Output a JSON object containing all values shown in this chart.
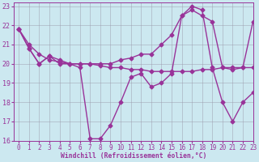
{
  "background_color": "#cce8f0",
  "grid_color": "#9999aa",
  "line_color": "#993399",
  "lines": [
    {
      "x": [
        0,
        1,
        2,
        3,
        4,
        5,
        6,
        7,
        8,
        9,
        10,
        11,
        12,
        13,
        14,
        15,
        16,
        17,
        18,
        19,
        20,
        21,
        22,
        23
      ],
      "y": [
        21.8,
        20.8,
        20.0,
        20.4,
        20.0,
        20.0,
        19.8,
        16.1,
        16.1,
        16.8,
        18.0,
        19.3,
        19.5,
        18.8,
        19.0,
        19.5,
        22.5,
        23.0,
        22.8,
        19.8,
        18.0,
        17.0,
        18.0,
        18.5
      ]
    },
    {
      "x": [
        0,
        1,
        2,
        3,
        4,
        5,
        6,
        7,
        8,
        9,
        10,
        11,
        12,
        13,
        14,
        15,
        16,
        17,
        18,
        19,
        20,
        21,
        22,
        23
      ],
      "y": [
        21.8,
        20.8,
        20.0,
        20.4,
        20.2,
        20.0,
        20.0,
        20.0,
        20.0,
        20.0,
        20.2,
        20.3,
        20.5,
        20.5,
        21.0,
        21.5,
        22.5,
        22.8,
        22.5,
        22.2,
        19.8,
        19.7,
        19.8,
        22.2
      ]
    },
    {
      "x": [
        0,
        1,
        2,
        3,
        4,
        5,
        6,
        7,
        8,
        9,
        10,
        11,
        12,
        13,
        14,
        15,
        16,
        17,
        18,
        19,
        20,
        21,
        22,
        23
      ],
      "y": [
        21.8,
        21.0,
        20.5,
        20.2,
        20.1,
        20.0,
        20.0,
        20.0,
        19.9,
        19.8,
        19.8,
        19.7,
        19.7,
        19.6,
        19.6,
        19.6,
        19.6,
        19.6,
        19.7,
        19.7,
        19.8,
        19.8,
        19.8,
        19.8
      ]
    }
  ],
  "xlabel": "Windchill (Refroidissement éolien,°C)",
  "xlim": [
    -0.5,
    23
  ],
  "ylim": [
    16,
    23.2
  ],
  "yticks": [
    16,
    17,
    18,
    19,
    20,
    21,
    22,
    23
  ],
  "xticks": [
    0,
    1,
    2,
    3,
    4,
    5,
    6,
    7,
    8,
    9,
    10,
    11,
    12,
    13,
    14,
    15,
    16,
    17,
    18,
    19,
    20,
    21,
    22,
    23
  ],
  "marker": "D",
  "markersize": 2.5,
  "linewidth": 1.0,
  "tick_fontsize": 5.5,
  "xlabel_fontsize": 5.8
}
